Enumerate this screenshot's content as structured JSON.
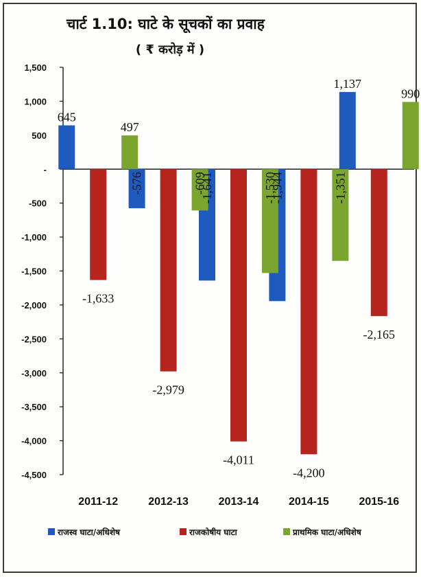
{
  "chart_data": {
    "type": "bar",
    "title": "चार्ट 1.10: घाटे के सूचकों का प्रवाह",
    "subtitle": "( ₹ करोड़ में )",
    "categories": [
      "2011-12",
      "2012-13",
      "2013-14",
      "2014-15",
      "2015-16"
    ],
    "series": [
      {
        "name": "राजस्व घाटा/अधिशेष",
        "color": "#1f5bbf",
        "values": [
          645,
          -576,
          -1641,
          -1944,
          1137
        ],
        "labels": [
          "645",
          "-576",
          "-1,641",
          "-1,944",
          "1,137"
        ]
      },
      {
        "name": "राजकोषीय घाटा",
        "color": "#b5251d",
        "values": [
          -1633,
          -2979,
          -4011,
          -4200,
          -2165
        ],
        "labels": [
          "-1,633",
          "-2,979",
          "-4,011",
          "-4,200",
          "-2,165"
        ]
      },
      {
        "name": "प्राथमिक घाटा/अधिशेष",
        "color": "#7aa52e",
        "values": [
          497,
          -609,
          -1530,
          -1351,
          990
        ],
        "labels": [
          "497",
          "-609",
          "-1,530",
          "-1,351",
          "990"
        ]
      }
    ],
    "ylim": [
      -4500,
      1500
    ],
    "yticks": [
      1500,
      1000,
      500,
      0,
      -500,
      -1000,
      -1500,
      -2000,
      -2500,
      -3000,
      -3500,
      -4000,
      -4500
    ],
    "ytick_labels": [
      "1,500",
      "1,000",
      "500",
      "-",
      "-500",
      "-1,000",
      "-1,500",
      "-2,000",
      "-2,500",
      "-3,000",
      "-3,500",
      "-4,000",
      "-4,500"
    ],
    "grid": false,
    "legend_position": "bottom"
  }
}
